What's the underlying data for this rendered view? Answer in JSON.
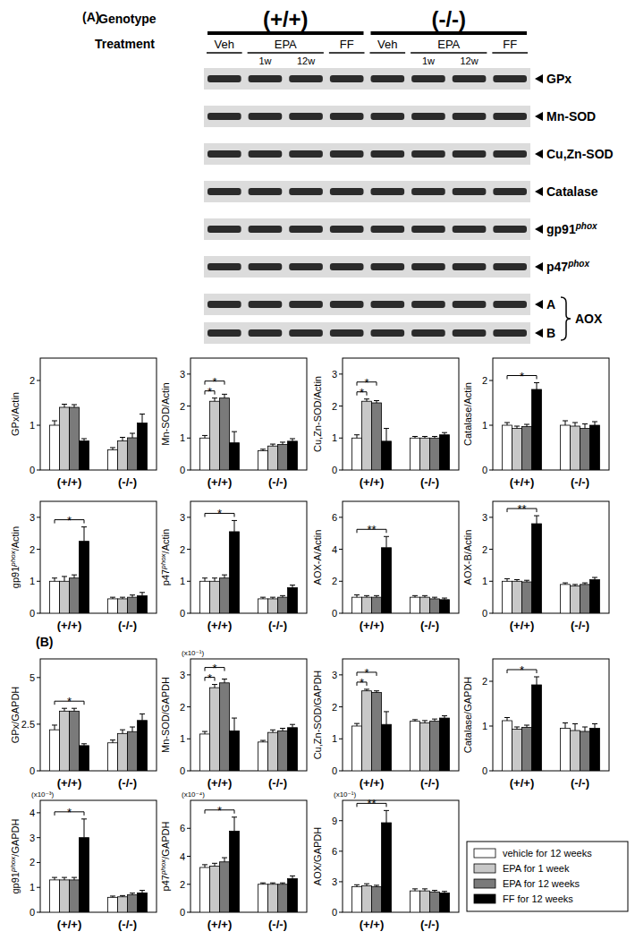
{
  "panel_labels": [
    "(A)",
    "(B)"
  ],
  "blot": {
    "genotype_label": "Genotype",
    "treatment_label": "Treatment",
    "genotypes": [
      "(+/+)",
      "(-/-)"
    ],
    "treatments": [
      {
        "label": "Veh"
      },
      {
        "label": "EPA",
        "sub": [
          "1w",
          "12w"
        ]
      },
      {
        "label": "FF"
      }
    ],
    "bands": [
      {
        "label": "GPx"
      },
      {
        "label": "Mn-SOD"
      },
      {
        "label": "Cu,Zn-SOD"
      },
      {
        "label": "Catalase"
      },
      {
        "label": "gp91",
        "sup": "phox"
      },
      {
        "label": "p47",
        "sup": "phox"
      }
    ],
    "band_group": {
      "label": "AOX",
      "bands": [
        "A",
        "B"
      ]
    }
  },
  "legend": {
    "entries": [
      {
        "name": "vehicle for 12 weeks",
        "color": "#ffffff"
      },
      {
        "name": "EPA for 1 week",
        "color": "#c8c8c8"
      },
      {
        "name": "EPA for 12 weeks",
        "color": "#7a7a7a"
      },
      {
        "name": "FF for 12 weeks",
        "color": "#000000"
      }
    ]
  },
  "chart_data": [
    {
      "type": "bar",
      "ylabel": "GPx/Actin",
      "categories": [
        "(+/+)",
        "(-/-)"
      ],
      "ylim": [
        0,
        2.5
      ],
      "yticks": [
        0,
        1,
        2
      ],
      "series": [
        {
          "color": "#ffffff",
          "values": [
            1.0,
            0.45
          ],
          "errors": [
            0.1,
            0.05
          ]
        },
        {
          "color": "#c8c8c8",
          "values": [
            1.4,
            0.65
          ],
          "errors": [
            0.07,
            0.08
          ]
        },
        {
          "color": "#7a7a7a",
          "values": [
            1.4,
            0.72
          ],
          "errors": [
            0.06,
            0.1
          ]
        },
        {
          "color": "#000000",
          "values": [
            0.65,
            1.05
          ],
          "errors": [
            0.05,
            0.2
          ]
        }
      ],
      "annotations": []
    },
    {
      "type": "bar",
      "ylabel": "Mn-SOD/Actin",
      "categories": [
        "(+/+)",
        "(-/-)"
      ],
      "ylim": [
        0,
        3.5
      ],
      "yticks": [
        0,
        1,
        2,
        3
      ],
      "series": [
        {
          "color": "#ffffff",
          "values": [
            1.0,
            0.6
          ],
          "errors": [
            0.08,
            0.05
          ]
        },
        {
          "color": "#c8c8c8",
          "values": [
            2.15,
            0.75
          ],
          "errors": [
            0.1,
            0.06
          ]
        },
        {
          "color": "#7a7a7a",
          "values": [
            2.25,
            0.8
          ],
          "errors": [
            0.12,
            0.07
          ]
        },
        {
          "color": "#000000",
          "values": [
            0.85,
            0.9
          ],
          "errors": [
            0.35,
            0.08
          ]
        }
      ],
      "annotations": [
        {
          "category": 0,
          "from": 0,
          "to": 1,
          "label": "*"
        },
        {
          "category": 0,
          "from": 0,
          "to": 2,
          "label": "*"
        }
      ]
    },
    {
      "type": "bar",
      "ylabel": "Cu,Zn-SOD/Actin",
      "categories": [
        "(+/+)",
        "(-/-)"
      ],
      "ylim": [
        0,
        3.5
      ],
      "yticks": [
        0,
        1,
        2,
        3
      ],
      "series": [
        {
          "color": "#ffffff",
          "values": [
            1.0,
            1.0
          ],
          "errors": [
            0.1,
            0.05
          ]
        },
        {
          "color": "#c8c8c8",
          "values": [
            2.15,
            1.0
          ],
          "errors": [
            0.07,
            0.05
          ]
        },
        {
          "color": "#7a7a7a",
          "values": [
            2.1,
            1.0
          ],
          "errors": [
            0.07,
            0.05
          ]
        },
        {
          "color": "#000000",
          "values": [
            0.9,
            1.1
          ],
          "errors": [
            0.4,
            0.07
          ]
        }
      ],
      "annotations": [
        {
          "category": 0,
          "from": 0,
          "to": 1,
          "label": "*"
        },
        {
          "category": 0,
          "from": 0,
          "to": 2,
          "label": "*"
        }
      ]
    },
    {
      "type": "bar",
      "ylabel": "Catalase/Actin",
      "categories": [
        "(+/+)",
        "(-/-)"
      ],
      "ylim": [
        0,
        2.5
      ],
      "yticks": [
        0,
        1,
        2
      ],
      "series": [
        {
          "color": "#ffffff",
          "values": [
            1.0,
            1.0
          ],
          "errors": [
            0.06,
            0.1
          ]
        },
        {
          "color": "#c8c8c8",
          "values": [
            0.93,
            0.98
          ],
          "errors": [
            0.05,
            0.08
          ]
        },
        {
          "color": "#7a7a7a",
          "values": [
            0.97,
            0.93
          ],
          "errors": [
            0.05,
            0.1
          ]
        },
        {
          "color": "#000000",
          "values": [
            1.8,
            1.0
          ],
          "errors": [
            0.15,
            0.08
          ]
        }
      ],
      "annotations": [
        {
          "category": 0,
          "from": 0,
          "to": 3,
          "label": "*"
        }
      ]
    },
    {
      "type": "bar",
      "ylabel": {
        "text": "gp91",
        "sup": "phox",
        "after": "/Actin"
      },
      "categories": [
        "(+/+)",
        "(-/-)"
      ],
      "ylim": [
        0,
        3.5
      ],
      "yticks": [
        0,
        1,
        2,
        3
      ],
      "series": [
        {
          "color": "#ffffff",
          "values": [
            1.0,
            0.45
          ],
          "errors": [
            0.1,
            0.05
          ]
        },
        {
          "color": "#c8c8c8",
          "values": [
            1.0,
            0.45
          ],
          "errors": [
            0.15,
            0.05
          ]
        },
        {
          "color": "#7a7a7a",
          "values": [
            1.1,
            0.5
          ],
          "errors": [
            0.1,
            0.07
          ]
        },
        {
          "color": "#000000",
          "values": [
            2.25,
            0.55
          ],
          "errors": [
            0.45,
            0.1
          ]
        }
      ],
      "annotations": [
        {
          "category": 0,
          "from": 0,
          "to": 3,
          "label": "*"
        }
      ]
    },
    {
      "type": "bar",
      "ylabel": {
        "text": "p47",
        "sup": "phox",
        "after": "/Actin"
      },
      "categories": [
        "(+/+)",
        "(-/-)"
      ],
      "ylim": [
        0,
        3.5
      ],
      "yticks": [
        0,
        1,
        2,
        3
      ],
      "series": [
        {
          "color": "#ffffff",
          "values": [
            1.0,
            0.45
          ],
          "errors": [
            0.1,
            0.05
          ]
        },
        {
          "color": "#c8c8c8",
          "values": [
            1.0,
            0.45
          ],
          "errors": [
            0.1,
            0.05
          ]
        },
        {
          "color": "#7a7a7a",
          "values": [
            1.1,
            0.5
          ],
          "errors": [
            0.1,
            0.05
          ]
        },
        {
          "color": "#000000",
          "values": [
            2.55,
            0.8
          ],
          "errors": [
            0.35,
            0.08
          ]
        }
      ],
      "annotations": [
        {
          "category": 0,
          "from": 0,
          "to": 3,
          "label": "*"
        }
      ]
    },
    {
      "type": "bar",
      "ylabel": "AOX-A/Actin",
      "categories": [
        "(+/+)",
        "(-/-)"
      ],
      "ylim": [
        0,
        7
      ],
      "yticks": [
        0,
        2,
        4,
        6
      ],
      "series": [
        {
          "color": "#ffffff",
          "values": [
            1.0,
            1.0
          ],
          "errors": [
            0.15,
            0.1
          ]
        },
        {
          "color": "#c8c8c8",
          "values": [
            1.0,
            1.0
          ],
          "errors": [
            0.1,
            0.1
          ]
        },
        {
          "color": "#7a7a7a",
          "values": [
            1.0,
            0.9
          ],
          "errors": [
            0.1,
            0.1
          ]
        },
        {
          "color": "#000000",
          "values": [
            4.1,
            0.85
          ],
          "errors": [
            0.7,
            0.1
          ]
        }
      ],
      "annotations": [
        {
          "category": 0,
          "from": 0,
          "to": 3,
          "label": "**"
        }
      ]
    },
    {
      "type": "bar",
      "ylabel": "AOX-B/Actin",
      "categories": [
        "(+/+)",
        "(-/-)"
      ],
      "ylim": [
        0,
        3.5
      ],
      "yticks": [
        0,
        1,
        2,
        3
      ],
      "series": [
        {
          "color": "#ffffff",
          "values": [
            1.0,
            0.9
          ],
          "errors": [
            0.08,
            0.05
          ]
        },
        {
          "color": "#c8c8c8",
          "values": [
            1.0,
            0.85
          ],
          "errors": [
            0.05,
            0.05
          ]
        },
        {
          "color": "#7a7a7a",
          "values": [
            0.98,
            0.9
          ],
          "errors": [
            0.05,
            0.05
          ]
        },
        {
          "color": "#000000",
          "values": [
            2.8,
            1.05
          ],
          "errors": [
            0.25,
            0.07
          ]
        }
      ],
      "annotations": [
        {
          "category": 0,
          "from": 0,
          "to": 3,
          "label": "**"
        }
      ]
    },
    {
      "type": "bar",
      "ylabel": "GPx/GAPDH",
      "categories": [
        "(+/+)",
        "(-/-)"
      ],
      "ylim": [
        0,
        6
      ],
      "yticks": [
        0,
        2.5,
        5
      ],
      "series": [
        {
          "color": "#ffffff",
          "values": [
            2.2,
            1.5
          ],
          "errors": [
            0.25,
            0.15
          ]
        },
        {
          "color": "#c8c8c8",
          "values": [
            3.2,
            2.0
          ],
          "errors": [
            0.15,
            0.2
          ]
        },
        {
          "color": "#7a7a7a",
          "values": [
            3.2,
            2.1
          ],
          "errors": [
            0.15,
            0.25
          ]
        },
        {
          "color": "#000000",
          "values": [
            1.35,
            2.7
          ],
          "errors": [
            0.1,
            0.35
          ]
        }
      ],
      "annotations": [
        {
          "category": 0,
          "from": 0,
          "to": 3,
          "label": "*"
        }
      ]
    },
    {
      "type": "bar",
      "ylabel": "Mn-SOD/GAPDH",
      "scale_label": "(x10⁻¹)",
      "categories": [
        "(+/+)",
        "(-/-)"
      ],
      "ylim": [
        0,
        3.5
      ],
      "yticks": [
        0,
        1,
        2,
        3
      ],
      "series": [
        {
          "color": "#ffffff",
          "values": [
            1.15,
            0.9
          ],
          "errors": [
            0.08,
            0.05
          ]
        },
        {
          "color": "#c8c8c8",
          "values": [
            2.6,
            1.2
          ],
          "errors": [
            0.1,
            0.08
          ]
        },
        {
          "color": "#7a7a7a",
          "values": [
            2.75,
            1.25
          ],
          "errors": [
            0.12,
            0.08
          ]
        },
        {
          "color": "#000000",
          "values": [
            1.25,
            1.35
          ],
          "errors": [
            0.4,
            0.1
          ]
        }
      ],
      "annotations": [
        {
          "category": 0,
          "from": 0,
          "to": 1,
          "label": "*"
        },
        {
          "category": 0,
          "from": 0,
          "to": 2,
          "label": "*"
        }
      ]
    },
    {
      "type": "bar",
      "ylabel": "Cu,Zn-SOD/GAPDH",
      "categories": [
        "(+/+)",
        "(-/-)"
      ],
      "ylim": [
        0,
        3.5
      ],
      "yticks": [
        0,
        1,
        2,
        3
      ],
      "series": [
        {
          "color": "#ffffff",
          "values": [
            1.4,
            1.55
          ],
          "errors": [
            0.08,
            0.05
          ]
        },
        {
          "color": "#c8c8c8",
          "values": [
            2.5,
            1.5
          ],
          "errors": [
            0.05,
            0.07
          ]
        },
        {
          "color": "#7a7a7a",
          "values": [
            2.45,
            1.55
          ],
          "errors": [
            0.05,
            0.07
          ]
        },
        {
          "color": "#000000",
          "values": [
            1.45,
            1.65
          ],
          "errors": [
            0.4,
            0.07
          ]
        }
      ],
      "annotations": [
        {
          "category": 0,
          "from": 0,
          "to": 1,
          "label": "*"
        },
        {
          "category": 0,
          "from": 0,
          "to": 2,
          "label": "*"
        }
      ]
    },
    {
      "type": "bar",
      "ylabel": "Catalase/GAPDH",
      "categories": [
        "(+/+)",
        "(-/-)"
      ],
      "ylim": [
        0,
        2.5
      ],
      "yticks": [
        0,
        1,
        2
      ],
      "series": [
        {
          "color": "#ffffff",
          "values": [
            1.12,
            0.95
          ],
          "errors": [
            0.07,
            0.12
          ]
        },
        {
          "color": "#c8c8c8",
          "values": [
            0.93,
            0.9
          ],
          "errors": [
            0.05,
            0.15
          ]
        },
        {
          "color": "#7a7a7a",
          "values": [
            0.97,
            0.88
          ],
          "errors": [
            0.05,
            0.1
          ]
        },
        {
          "color": "#000000",
          "values": [
            1.92,
            0.95
          ],
          "errors": [
            0.18,
            0.1
          ]
        }
      ],
      "annotations": [
        {
          "category": 0,
          "from": 0,
          "to": 3,
          "label": "*"
        }
      ]
    },
    {
      "type": "bar",
      "ylabel": {
        "text": "gp91",
        "sup": "phox",
        "after": "/GAPDH"
      },
      "scale_label": "(x10⁻³)",
      "categories": [
        "(+/+)",
        "(-/-)"
      ],
      "ylim": [
        0,
        4.5
      ],
      "yticks": [
        0,
        1,
        2,
        3,
        4
      ],
      "series": [
        {
          "color": "#ffffff",
          "values": [
            1.3,
            0.6
          ],
          "errors": [
            0.1,
            0.05
          ]
        },
        {
          "color": "#c8c8c8",
          "values": [
            1.3,
            0.62
          ],
          "errors": [
            0.1,
            0.05
          ]
        },
        {
          "color": "#7a7a7a",
          "values": [
            1.3,
            0.7
          ],
          "errors": [
            0.1,
            0.07
          ]
        },
        {
          "color": "#000000",
          "values": [
            3.0,
            0.78
          ],
          "errors": [
            0.75,
            0.1
          ]
        }
      ],
      "annotations": [
        {
          "category": 0,
          "from": 0,
          "to": 3,
          "label": "*"
        }
      ]
    },
    {
      "type": "bar",
      "ylabel": {
        "text": "p47",
        "sup": "phox",
        "after": "/GAPDH"
      },
      "scale_label": "(x10⁻⁴)",
      "categories": [
        "(+/+)",
        "(-/-)"
      ],
      "ylim": [
        0,
        8
      ],
      "yticks": [
        0,
        2,
        4,
        6
      ],
      "series": [
        {
          "color": "#ffffff",
          "values": [
            3.2,
            2.0
          ],
          "errors": [
            0.2,
            0.1
          ]
        },
        {
          "color": "#c8c8c8",
          "values": [
            3.3,
            2.0
          ],
          "errors": [
            0.2,
            0.1
          ]
        },
        {
          "color": "#7a7a7a",
          "values": [
            3.6,
            2.0
          ],
          "errors": [
            0.3,
            0.1
          ]
        },
        {
          "color": "#000000",
          "values": [
            5.8,
            2.4
          ],
          "errors": [
            1.0,
            0.2
          ]
        }
      ],
      "annotations": [
        {
          "category": 0,
          "from": 0,
          "to": 3,
          "label": "*"
        }
      ]
    },
    {
      "type": "bar",
      "ylabel": "AOX/GAPDH",
      "scale_label": "(x10⁻¹)",
      "categories": [
        "(+/+)",
        "(-/-)"
      ],
      "ylim": [
        0,
        11
      ],
      "yticks": [
        0,
        3,
        6,
        9
      ],
      "series": [
        {
          "color": "#ffffff",
          "values": [
            2.5,
            2.1
          ],
          "errors": [
            0.2,
            0.2
          ]
        },
        {
          "color": "#c8c8c8",
          "values": [
            2.6,
            2.1
          ],
          "errors": [
            0.2,
            0.2
          ]
        },
        {
          "color": "#7a7a7a",
          "values": [
            2.5,
            2.0
          ],
          "errors": [
            0.15,
            0.15
          ]
        },
        {
          "color": "#000000",
          "values": [
            8.8,
            1.9
          ],
          "errors": [
            1.2,
            0.15
          ]
        }
      ],
      "annotations": [
        {
          "category": 0,
          "from": 0,
          "to": 3,
          "label": "**"
        }
      ]
    }
  ]
}
